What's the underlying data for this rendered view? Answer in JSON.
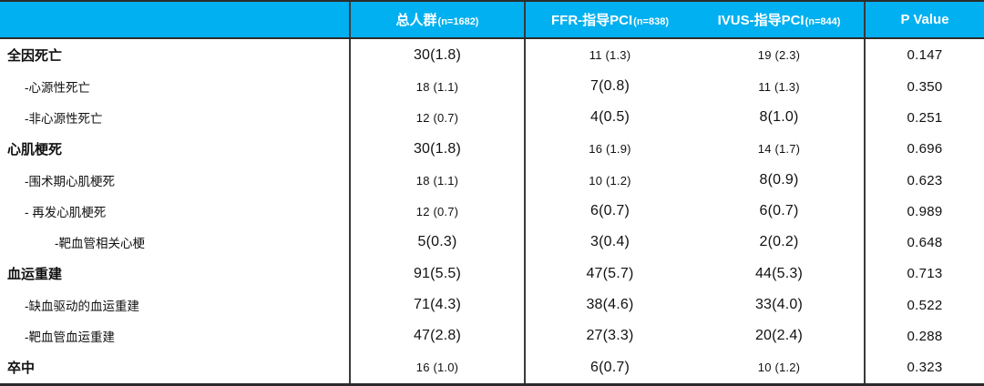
{
  "table": {
    "header": {
      "row_label_column": "",
      "columns": [
        {
          "label": "总人群",
          "n": "(n=1682)"
        },
        {
          "label": "FFR-指导PCI",
          "n": "(n=838)"
        },
        {
          "label": "IVUS-指导PCI",
          "n": "(n=844)"
        },
        {
          "label": "P Value",
          "n": ""
        }
      ]
    },
    "rows": [
      {
        "label": "全因死亡",
        "level": 0,
        "bold": true,
        "values": [
          "30(1.8)",
          "11 (1.3)",
          "19 (2.3)"
        ],
        "sizes": [
          "lg",
          "sm",
          "sm"
        ],
        "p": "0.147"
      },
      {
        "label": "-心源性死亡",
        "level": 1,
        "bold": false,
        "values": [
          "18 (1.1)",
          "7(0.8)",
          "11 (1.3)"
        ],
        "sizes": [
          "sm",
          "lg",
          "sm"
        ],
        "p": "0.350"
      },
      {
        "label": "-非心源性死亡",
        "level": 1,
        "bold": false,
        "values": [
          "12 (0.7)",
          "4(0.5)",
          "8(1.0)"
        ],
        "sizes": [
          "sm",
          "lg",
          "lg"
        ],
        "p": "0.251"
      },
      {
        "label": "心肌梗死",
        "level": 0,
        "bold": true,
        "values": [
          "30(1.8)",
          "16 (1.9)",
          "14 (1.7)"
        ],
        "sizes": [
          "lg",
          "sm",
          "sm"
        ],
        "p": "0.696"
      },
      {
        "label": "-围术期心肌梗死",
        "level": 1,
        "bold": false,
        "values": [
          "18 (1.1)",
          "10 (1.2)",
          "8(0.9)"
        ],
        "sizes": [
          "sm",
          "sm",
          "lg"
        ],
        "p": "0.623"
      },
      {
        "label": "- 再发心肌梗死",
        "level": 1,
        "bold": false,
        "values": [
          "12 (0.7)",
          "6(0.7)",
          "6(0.7)"
        ],
        "sizes": [
          "sm",
          "lg",
          "lg"
        ],
        "p": "0.989"
      },
      {
        "label": "-靶血管相关心梗",
        "level": 2,
        "bold": false,
        "values": [
          "5(0.3)",
          "3(0.4)",
          "2(0.2)"
        ],
        "sizes": [
          "lg",
          "lg",
          "lg"
        ],
        "p": "0.648"
      },
      {
        "label": "血运重建",
        "level": 0,
        "bold": true,
        "values": [
          "91(5.5)",
          "47(5.7)",
          "44(5.3)"
        ],
        "sizes": [
          "lg",
          "lg",
          "lg"
        ],
        "p": "0.713"
      },
      {
        "label": "-缺血驱动的血运重建",
        "level": 1,
        "bold": false,
        "values": [
          "71(4.3)",
          "38(4.6)",
          "33(4.0)"
        ],
        "sizes": [
          "lg",
          "lg",
          "lg"
        ],
        "p": "0.522"
      },
      {
        "label": "-靶血管血运重建",
        "level": 1,
        "bold": false,
        "values": [
          "47(2.8)",
          "27(3.3)",
          "20(2.4)"
        ],
        "sizes": [
          "lg",
          "lg",
          "lg"
        ],
        "p": "0.288"
      },
      {
        "label": "卒中",
        "level": 0,
        "bold": true,
        "values": [
          "16 (1.0)",
          "6(0.7)",
          "10 (1.2)"
        ],
        "sizes": [
          "sm",
          "lg",
          "sm"
        ],
        "p": "0.323"
      }
    ]
  },
  "colors": {
    "header_bg": "#00B0F0",
    "header_text": "#FFFFFF",
    "grid_line": "#3A3A3A",
    "frame_line": "#2B2B2B",
    "body_text": "#111111"
  }
}
